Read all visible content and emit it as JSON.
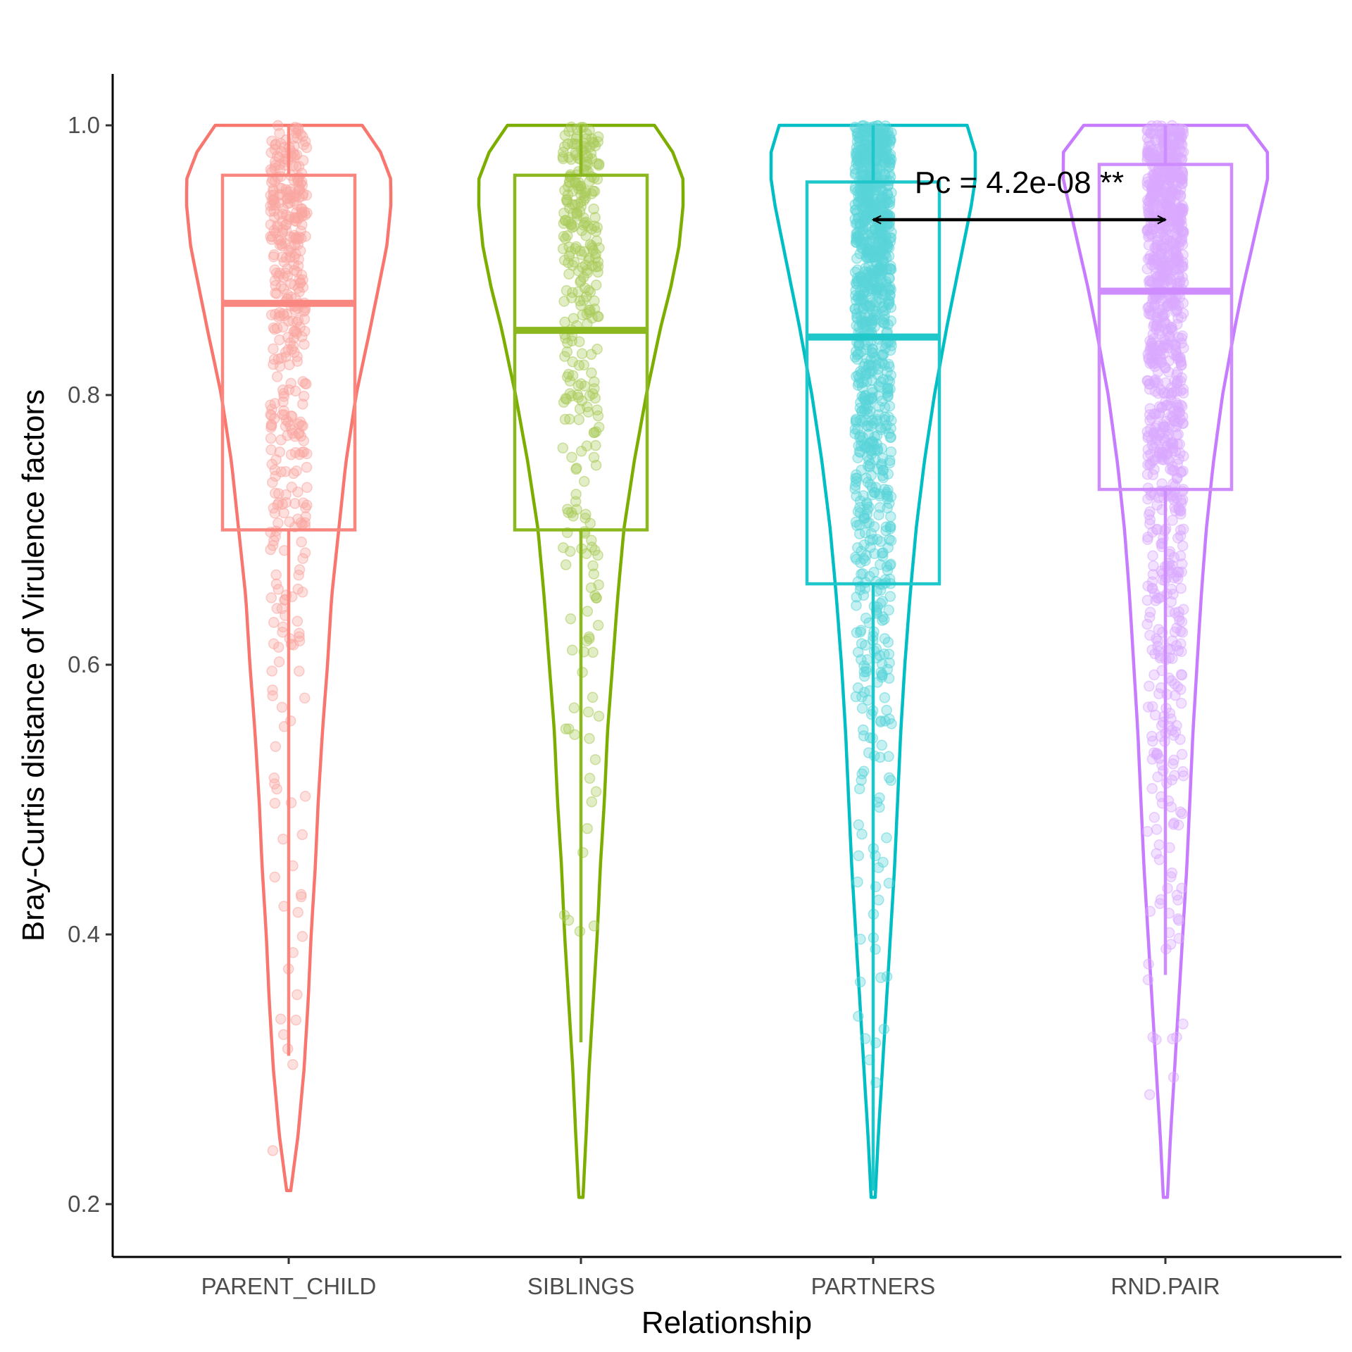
{
  "chart_data": {
    "type": "violin",
    "xlabel": "Relationship",
    "ylabel": "Bray-Curtis distance of Virulence factors",
    "ylim": [
      0.15,
      1.04
    ],
    "y_ticks": [
      0.2,
      0.4,
      0.6,
      0.8,
      1.0
    ],
    "y_tick_labels": [
      "0.2",
      "0.4",
      "0.6",
      "0.8",
      "1.0"
    ],
    "categories": [
      "PARENT_CHILD",
      "SIBLINGS",
      "PARTNERS",
      "RND.PAIR"
    ],
    "colors": [
      "#F8766D",
      "#7CAE00",
      "#00BFC4",
      "#C77CFF"
    ],
    "grid": false,
    "legend": "none",
    "groups": [
      {
        "name": "PARENT_CHILD",
        "box": {
          "q1": 0.7,
          "median": 0.868,
          "q3": 0.963,
          "whisker_low": 0.31,
          "whisker_high": 1.0
        },
        "range": [
          0.21,
          1.0
        ],
        "point_count": 420,
        "violin_profile": [
          [
            0.21,
            0.02
          ],
          [
            0.25,
            0.09
          ],
          [
            0.3,
            0.15
          ],
          [
            0.35,
            0.19
          ],
          [
            0.4,
            0.22
          ],
          [
            0.45,
            0.26
          ],
          [
            0.5,
            0.29
          ],
          [
            0.55,
            0.33
          ],
          [
            0.6,
            0.38
          ],
          [
            0.65,
            0.42
          ],
          [
            0.7,
            0.49
          ],
          [
            0.75,
            0.56
          ],
          [
            0.8,
            0.66
          ],
          [
            0.85,
            0.8
          ],
          [
            0.88,
            0.88
          ],
          [
            0.91,
            0.96
          ],
          [
            0.94,
            1.0
          ],
          [
            0.96,
            1.0
          ],
          [
            0.98,
            0.9
          ],
          [
            1.0,
            0.72
          ]
        ]
      },
      {
        "name": "SIBLINGS",
        "box": {
          "q1": 0.7,
          "median": 0.848,
          "q3": 0.963,
          "whisker_low": 0.32,
          "whisker_high": 1.0
        },
        "range": [
          0.205,
          1.0
        ],
        "point_count": 300,
        "violin_profile": [
          [
            0.205,
            0.02
          ],
          [
            0.25,
            0.05
          ],
          [
            0.3,
            0.08
          ],
          [
            0.35,
            0.12
          ],
          [
            0.4,
            0.16
          ],
          [
            0.45,
            0.19
          ],
          [
            0.5,
            0.23
          ],
          [
            0.55,
            0.26
          ],
          [
            0.6,
            0.31
          ],
          [
            0.65,
            0.36
          ],
          [
            0.7,
            0.42
          ],
          [
            0.75,
            0.52
          ],
          [
            0.8,
            0.64
          ],
          [
            0.85,
            0.78
          ],
          [
            0.88,
            0.88
          ],
          [
            0.91,
            0.96
          ],
          [
            0.94,
            1.0
          ],
          [
            0.96,
            1.0
          ],
          [
            0.98,
            0.9
          ],
          [
            1.0,
            0.72
          ]
        ]
      },
      {
        "name": "PARTNERS",
        "box": {
          "q1": 0.66,
          "median": 0.843,
          "q3": 0.958,
          "whisker_low": 0.21,
          "whisker_high": 1.0
        },
        "range": [
          0.205,
          1.0
        ],
        "point_count": 1000,
        "violin_profile": [
          [
            0.205,
            0.02
          ],
          [
            0.25,
            0.05
          ],
          [
            0.3,
            0.09
          ],
          [
            0.35,
            0.13
          ],
          [
            0.4,
            0.17
          ],
          [
            0.45,
            0.21
          ],
          [
            0.5,
            0.24
          ],
          [
            0.55,
            0.27
          ],
          [
            0.6,
            0.31
          ],
          [
            0.65,
            0.36
          ],
          [
            0.7,
            0.42
          ],
          [
            0.75,
            0.5
          ],
          [
            0.8,
            0.6
          ],
          [
            0.85,
            0.72
          ],
          [
            0.88,
            0.8
          ],
          [
            0.91,
            0.88
          ],
          [
            0.94,
            0.96
          ],
          [
            0.96,
            1.0
          ],
          [
            0.98,
            1.0
          ],
          [
            1.0,
            0.92
          ]
        ]
      },
      {
        "name": "RND.PAIR",
        "box": {
          "q1": 0.73,
          "median": 0.877,
          "q3": 0.971,
          "whisker_low": 0.37,
          "whisker_high": 1.0
        },
        "range": [
          0.205,
          1.0
        ],
        "point_count": 1000,
        "violin_profile": [
          [
            0.205,
            0.02
          ],
          [
            0.25,
            0.05
          ],
          [
            0.3,
            0.09
          ],
          [
            0.35,
            0.13
          ],
          [
            0.4,
            0.17
          ],
          [
            0.45,
            0.21
          ],
          [
            0.5,
            0.24
          ],
          [
            0.55,
            0.27
          ],
          [
            0.6,
            0.31
          ],
          [
            0.65,
            0.35
          ],
          [
            0.7,
            0.4
          ],
          [
            0.75,
            0.47
          ],
          [
            0.8,
            0.56
          ],
          [
            0.85,
            0.68
          ],
          [
            0.88,
            0.76
          ],
          [
            0.91,
            0.85
          ],
          [
            0.94,
            0.94
          ],
          [
            0.96,
            1.0
          ],
          [
            0.98,
            1.0
          ],
          [
            1.0,
            0.8
          ]
        ]
      }
    ],
    "annotations": [
      {
        "text": "Pc = 4.2e-08 **",
        "from": "PARTNERS",
        "to": "RND.PAIR",
        "y": 0.93
      }
    ]
  }
}
